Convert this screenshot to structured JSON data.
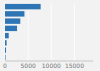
{
  "chart_data": {
    "type": "bar",
    "orientation": "horizontal",
    "categories": [
      null,
      null,
      null,
      null,
      null,
      null,
      null,
      null
    ],
    "values": [
      7700,
      4200,
      3300,
      2600,
      800,
      350,
      220,
      120
    ],
    "color": "#2e75b6",
    "xlim": [
      0,
      19000
    ],
    "xticks": [
      0,
      5000,
      10000,
      15000
    ],
    "grid": true,
    "tick_labels": "x"
  }
}
